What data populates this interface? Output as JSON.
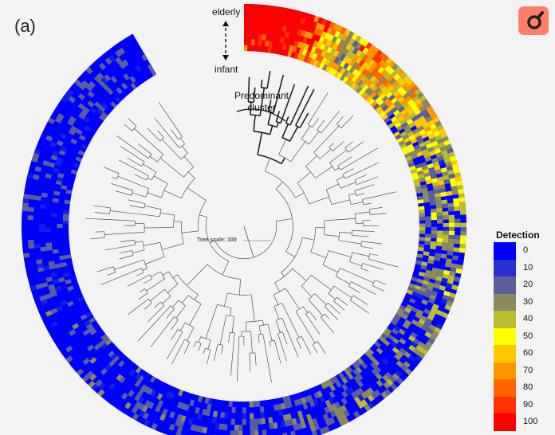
{
  "panel_label": "(a)",
  "axis": {
    "top_label": "elderly",
    "bottom_label": "infant"
  },
  "cluster_label": "Predominant cluster",
  "tree_scale_label": "Tree scale: 100",
  "legend": {
    "title": "Detection",
    "unit": "(%)",
    "items": [
      {
        "label": "0",
        "color": "#0000ff"
      },
      {
        "label": "10",
        "color": "#2b2fd0"
      },
      {
        "label": "20",
        "color": "#5b5e9c"
      },
      {
        "label": "30",
        "color": "#8a8a5e"
      },
      {
        "label": "40",
        "color": "#bcbc32"
      },
      {
        "label": "50",
        "color": "#ffff00"
      },
      {
        "label": "60",
        "color": "#ffc800"
      },
      {
        "label": "70",
        "color": "#ff9600"
      },
      {
        "label": "80",
        "color": "#ff6400"
      },
      {
        "label": "90",
        "color": "#ff3200"
      },
      {
        "label": "100",
        "color": "#ff0000"
      }
    ]
  },
  "colors": {
    "accent_button": "#ff7d6b",
    "heat_low": "#0000ff",
    "heat_high": "#ff0000",
    "tree": "#333333"
  },
  "icons": {
    "tool_button": "search-tool-icon"
  }
}
